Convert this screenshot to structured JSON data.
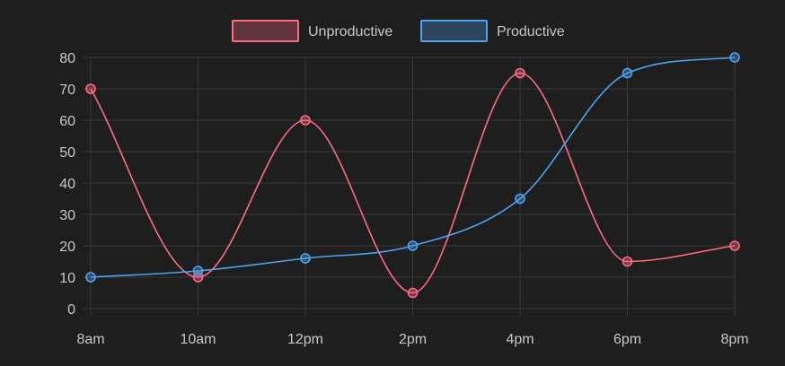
{
  "chart_data": {
    "type": "line",
    "categories": [
      "8am",
      "10am",
      "12pm",
      "2pm",
      "4pm",
      "6pm",
      "8pm"
    ],
    "series": [
      {
        "name": "Unproductive",
        "values": [
          70,
          10,
          60,
          5,
          75,
          15,
          20
        ],
        "color": "#ff6b86",
        "fill": "#ff6b86"
      },
      {
        "name": "Productive",
        "values": [
          10,
          12,
          16,
          20,
          35,
          75,
          80
        ],
        "color": "#4ea3f0",
        "fill": "#4ea3f0"
      }
    ],
    "y_ticks": [
      "0",
      "10",
      "20",
      "30",
      "40",
      "50",
      "60",
      "70",
      "80"
    ],
    "ylim": [
      0,
      80
    ],
    "grid": true,
    "legend_position": "top-center",
    "background": "#1e1e1e",
    "grid_color": "#3a3a3a",
    "text_color": "#c8c8c8"
  }
}
